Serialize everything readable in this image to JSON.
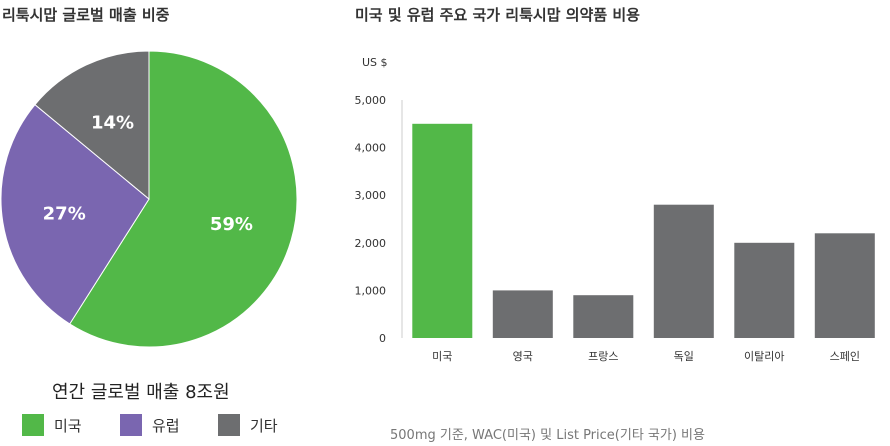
{
  "pie_title": "리툭시맙 글로벌 매출 비중",
  "bar_title": "미국 및 유럽 주요 국가 리툭시맙 의약품 비용",
  "total_sales": "연간 글로벌 매출 8조원",
  "footnote": "500mg 기준, WAC(미국) 및 List Price(기타 국가) 비용",
  "colors": {
    "green": "#52b848",
    "purple": "#7a66b0",
    "gray": "#6d6e70"
  },
  "chart_data": [
    {
      "type": "pie",
      "title": "리툭시맙 글로벌 매출 비중",
      "slices": [
        {
          "label": "미국",
          "value": 59,
          "text": "59%",
          "color": "#52b848"
        },
        {
          "label": "유럽",
          "value": 27,
          "text": "27%",
          "color": "#7a66b0"
        },
        {
          "label": "기타",
          "value": 14,
          "text": "14%",
          "color": "#6d6e70"
        }
      ],
      "legend": [
        {
          "label": "미국",
          "color": "#52b848"
        },
        {
          "label": "유럽",
          "color": "#7a66b0"
        },
        {
          "label": "기타",
          "color": "#6d6e70"
        }
      ],
      "legend_position": "bottom"
    },
    {
      "type": "bar",
      "title": "미국 및 유럽 주요 국가 리툭시맙 의약품 비용",
      "ylabel": "US $",
      "categories": [
        "미국",
        "영국",
        "프랑스",
        "독일",
        "이탈리아",
        "스페인"
      ],
      "values": [
        4500,
        1000,
        900,
        2800,
        2000,
        2200
      ],
      "bar_colors": [
        "#52b848",
        "#6d6e70",
        "#6d6e70",
        "#6d6e70",
        "#6d6e70",
        "#6d6e70"
      ],
      "ylim": [
        0,
        5000
      ],
      "yticks": [
        0,
        1000,
        2000,
        3000,
        4000,
        5000
      ],
      "ytick_labels": [
        "0",
        "1,000",
        "2,000",
        "3,000",
        "4,000",
        "5,000"
      ],
      "grid": false
    }
  ]
}
